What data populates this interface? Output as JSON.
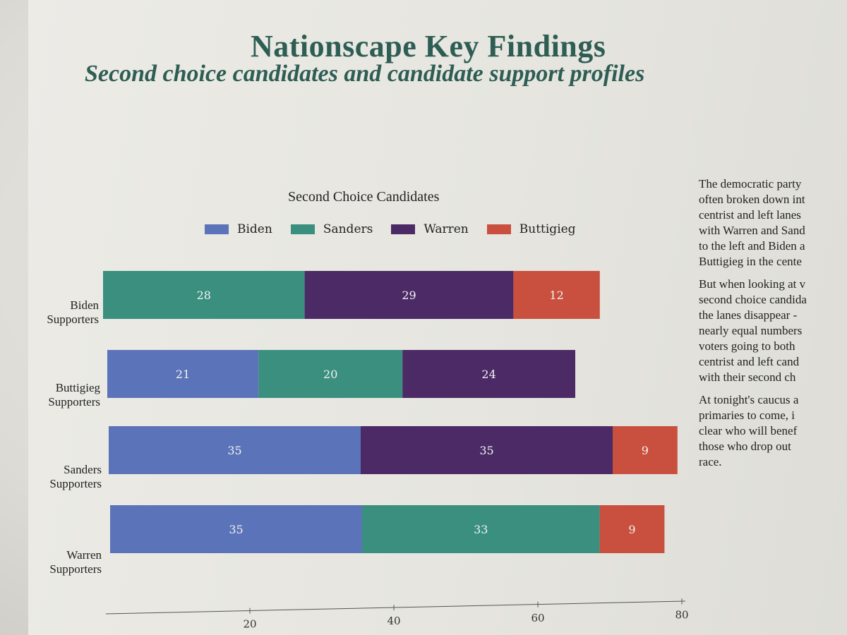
{
  "page": {
    "title": "Nationscape Key Findings",
    "subtitle": "Second choice candidates and candidate support profiles"
  },
  "side_text": [
    "The democratic party",
    "often broken down int",
    "centrist and left lanes",
    "with Warren and Sand",
    "to the left and Biden a",
    "Buttigieg in the cente",
    "But when looking at v",
    "second choice candida",
    "the lanes disappear -",
    "nearly equal numbers",
    "voters going to both",
    "centrist and left cand",
    "with their second ch",
    "At tonight's caucus a",
    "primaries to come, i",
    "clear who will benef",
    "those who drop out",
    "race."
  ],
  "chart_data": {
    "type": "bar",
    "orientation": "horizontal",
    "stacked": true,
    "title": "Second Choice Candidates",
    "legend": [
      {
        "name": "Biden",
        "color": "#5b73b8"
      },
      {
        "name": "Sanders",
        "color": "#3a8f7f"
      },
      {
        "name": "Warren",
        "color": "#4b2a66"
      },
      {
        "name": "Buttigieg",
        "color": "#c9503e"
      }
    ],
    "categories": [
      {
        "line1": "Biden",
        "line2": "Supporters"
      },
      {
        "line1": "Buttigieg",
        "line2": "Supporters"
      },
      {
        "line1": "Sanders",
        "line2": "Supporters"
      },
      {
        "line1": "Warren",
        "line2": "Supporters"
      }
    ],
    "rows": [
      [
        {
          "name": "Sanders",
          "value": 28
        },
        {
          "name": "Warren",
          "value": 29
        },
        {
          "name": "Buttigieg",
          "value": 12
        }
      ],
      [
        {
          "name": "Biden",
          "value": 21
        },
        {
          "name": "Sanders",
          "value": 20
        },
        {
          "name": "Warren",
          "value": 24
        }
      ],
      [
        {
          "name": "Biden",
          "value": 35
        },
        {
          "name": "Warren",
          "value": 35
        },
        {
          "name": "Buttigieg",
          "value": 9
        }
      ],
      [
        {
          "name": "Biden",
          "value": 35
        },
        {
          "name": "Sanders",
          "value": 33
        },
        {
          "name": "Buttigieg",
          "value": 9
        }
      ]
    ],
    "xlim": [
      0,
      80
    ],
    "xticks": [
      20,
      40,
      60,
      80
    ],
    "xlabel": "",
    "ylabel": ""
  }
}
